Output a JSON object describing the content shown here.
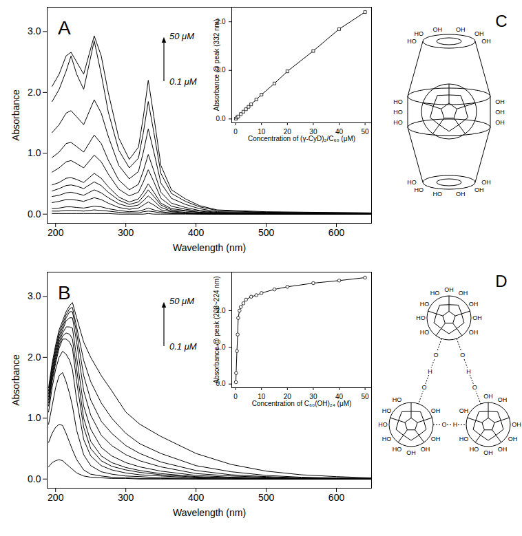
{
  "chart_data": [
    {
      "type": "line",
      "title": "A",
      "x_label": "Wavelength (nm)",
      "y_label": "Absorbance",
      "annotations": [
        "50 μM",
        "0.1 μM"
      ],
      "color": "#000000",
      "x": [
        195,
        205,
        215,
        222,
        230,
        240,
        255,
        265,
        275,
        290,
        305,
        318,
        325,
        332,
        340,
        350,
        365,
        385,
        405,
        430,
        500,
        650
      ],
      "series": [
        {
          "values": [
            2.1,
            2.3,
            2.6,
            2.66,
            2.5,
            2.3,
            2.93,
            2.6,
            2.0,
            1.25,
            0.9,
            1.1,
            1.6,
            2.2,
            1.6,
            0.8,
            0.4,
            0.25,
            0.14,
            0.07,
            0.04,
            0.02
          ]
        },
        {
          "values": [
            1.85,
            2.05,
            2.35,
            2.6,
            2.3,
            2.05,
            2.85,
            2.3,
            1.68,
            1.05,
            0.76,
            0.92,
            1.34,
            1.85,
            1.34,
            0.67,
            0.34,
            0.21,
            0.12,
            0.06,
            0.03,
            0.02
          ]
        },
        {
          "values": [
            1.34,
            1.47,
            1.66,
            1.7,
            1.6,
            1.47,
            1.88,
            1.66,
            1.28,
            0.8,
            0.58,
            0.7,
            1.02,
            1.4,
            1.02,
            0.51,
            0.26,
            0.16,
            0.09,
            0.04,
            0.03,
            0.01
          ]
        },
        {
          "values": [
            0.93,
            1.02,
            1.16,
            1.18,
            1.11,
            1.02,
            1.3,
            1.16,
            0.89,
            0.56,
            0.4,
            0.49,
            0.71,
            0.98,
            0.71,
            0.36,
            0.18,
            0.11,
            0.06,
            0.03,
            0.02,
            0.01
          ]
        },
        {
          "values": [
            0.69,
            0.76,
            0.86,
            0.88,
            0.83,
            0.76,
            0.97,
            0.86,
            0.66,
            0.41,
            0.3,
            0.36,
            0.53,
            0.73,
            0.53,
            0.26,
            0.13,
            0.08,
            0.05,
            0.02,
            0.01,
            0.01
          ]
        },
        {
          "values": [
            0.48,
            0.52,
            0.59,
            0.6,
            0.57,
            0.52,
            0.67,
            0.59,
            0.45,
            0.28,
            0.2,
            0.25,
            0.36,
            0.5,
            0.36,
            0.18,
            0.09,
            0.06,
            0.03,
            0.02,
            0.01,
            0.0
          ]
        },
        {
          "values": [
            0.38,
            0.42,
            0.47,
            0.48,
            0.46,
            0.42,
            0.53,
            0.47,
            0.36,
            0.23,
            0.16,
            0.2,
            0.29,
            0.4,
            0.29,
            0.15,
            0.07,
            0.05,
            0.03,
            0.01,
            0.01,
            0.0
          ]
        },
        {
          "values": [
            0.29,
            0.31,
            0.35,
            0.36,
            0.34,
            0.31,
            0.4,
            0.35,
            0.27,
            0.17,
            0.12,
            0.15,
            0.22,
            0.3,
            0.22,
            0.11,
            0.05,
            0.03,
            0.02,
            0.01,
            0.01,
            0.0
          ]
        },
        {
          "values": [
            0.19,
            0.21,
            0.24,
            0.24,
            0.23,
            0.21,
            0.27,
            0.24,
            0.18,
            0.11,
            0.08,
            0.1,
            0.15,
            0.2,
            0.15,
            0.07,
            0.04,
            0.02,
            0.01,
            0.01,
            0.0,
            0.0
          ]
        },
        {
          "values": [
            0.09,
            0.1,
            0.12,
            0.12,
            0.11,
            0.1,
            0.13,
            0.12,
            0.09,
            0.06,
            0.04,
            0.05,
            0.07,
            0.1,
            0.07,
            0.04,
            0.02,
            0.01,
            0.01,
            0.0,
            0.0,
            0.0
          ]
        },
        {
          "values": [
            0.05,
            0.05,
            0.06,
            0.06,
            0.06,
            0.05,
            0.07,
            0.06,
            0.05,
            0.03,
            0.02,
            0.02,
            0.04,
            0.05,
            0.04,
            0.02,
            0.01,
            0.01,
            0.0,
            0.0,
            0.0,
            0.0
          ]
        },
        {
          "values": [
            0.01,
            0.01,
            0.01,
            0.01,
            0.01,
            0.01,
            0.01,
            0.01,
            0.01,
            0.0,
            0.0,
            0.0,
            0.0,
            0.01,
            0.0,
            0.0,
            0.0,
            0.0,
            0.0,
            0.0,
            0.0,
            0.0
          ]
        }
      ],
      "xlim": [
        188,
        650
      ],
      "xticks": [
        200,
        300,
        400,
        500,
        600
      ],
      "ylim": [
        -0.15,
        3.4
      ],
      "yticks": [
        0,
        1,
        2,
        3
      ]
    },
    {
      "type": "line",
      "marker": "square",
      "color": "#000000",
      "x_label": "Concentration of (γ-CyD)₂/C₆₀ (μM)",
      "y_label": "Absorbance @ peak (332 nm)",
      "x": [
        0.1,
        0.5,
        1,
        2,
        3,
        4,
        5,
        6,
        8,
        10,
        15,
        20,
        30,
        40,
        50
      ],
      "values": [
        0.005,
        0.03,
        0.05,
        0.1,
        0.15,
        0.2,
        0.25,
        0.3,
        0.4,
        0.5,
        0.73,
        0.98,
        1.4,
        1.85,
        2.2
      ],
      "xlim": [
        -1.5,
        52.5
      ],
      "xticks": [
        0,
        10,
        20,
        30,
        40,
        50
      ],
      "ylim": [
        -0.08,
        2.3
      ],
      "yticks": [
        0,
        1,
        2
      ]
    },
    {
      "type": "line",
      "title": "B",
      "x_label": "Wavelength (nm)",
      "y_label": "Absorbance",
      "annotations": [
        "50 μM",
        "0.1 μM"
      ],
      "color": "#000000",
      "x": [
        190,
        195,
        200,
        205,
        210,
        215,
        220,
        224,
        230,
        240,
        250,
        265,
        280,
        300,
        320,
        350,
        400,
        450,
        500,
        550,
        600,
        650
      ],
      "series": [
        {
          "values": [
            1.5,
            1.9,
            2.2,
            2.45,
            2.6,
            2.75,
            2.85,
            2.9,
            2.65,
            2.25,
            2.0,
            1.7,
            1.45,
            1.1,
            0.9,
            0.7,
            0.42,
            0.24,
            0.13,
            0.07,
            0.04,
            0.02
          ]
        },
        {
          "values": [
            1.45,
            1.85,
            2.15,
            2.4,
            2.55,
            2.7,
            2.8,
            2.82,
            2.5,
            1.95,
            1.6,
            1.25,
            1.0,
            0.75,
            0.58,
            0.42,
            0.22,
            0.12,
            0.06,
            0.03,
            0.02,
            0.01
          ]
        },
        {
          "values": [
            1.4,
            1.8,
            2.1,
            2.35,
            2.5,
            2.65,
            2.75,
            2.75,
            2.4,
            1.7,
            1.3,
            0.95,
            0.75,
            0.55,
            0.42,
            0.28,
            0.14,
            0.07,
            0.04,
            0.02,
            0.01,
            0.01
          ]
        },
        {
          "values": [
            1.35,
            1.75,
            2.05,
            2.3,
            2.45,
            2.6,
            2.65,
            2.65,
            2.25,
            1.45,
            1.05,
            0.72,
            0.55,
            0.4,
            0.3,
            0.2,
            0.09,
            0.05,
            0.03,
            0.01,
            0.01,
            0.0
          ]
        },
        {
          "values": [
            1.3,
            1.7,
            2.0,
            2.25,
            2.4,
            2.5,
            2.5,
            2.48,
            2.0,
            1.2,
            0.82,
            0.52,
            0.38,
            0.27,
            0.2,
            0.13,
            0.06,
            0.03,
            0.02,
            0.01,
            0.0,
            0.0
          ]
        },
        {
          "values": [
            1.25,
            1.65,
            1.95,
            2.2,
            2.35,
            2.4,
            2.38,
            2.3,
            1.8,
            1.0,
            0.62,
            0.38,
            0.27,
            0.19,
            0.14,
            0.09,
            0.04,
            0.02,
            0.01,
            0.0,
            0.0,
            0.0
          ]
        },
        {
          "values": [
            1.2,
            1.6,
            1.9,
            2.15,
            2.3,
            2.3,
            2.25,
            2.15,
            1.6,
            0.85,
            0.5,
            0.3,
            0.21,
            0.15,
            0.11,
            0.07,
            0.03,
            0.02,
            0.01,
            0.0,
            0.0,
            0.0
          ]
        },
        {
          "values": [
            1.1,
            1.5,
            1.8,
            2.0,
            2.1,
            2.05,
            1.95,
            1.8,
            1.3,
            0.65,
            0.38,
            0.22,
            0.15,
            0.1,
            0.07,
            0.05,
            0.02,
            0.01,
            0.0,
            0.0,
            0.0,
            0.0
          ]
        },
        {
          "values": [
            0.9,
            1.2,
            1.5,
            1.7,
            1.75,
            1.6,
            1.4,
            1.2,
            0.8,
            0.4,
            0.22,
            0.12,
            0.08,
            0.05,
            0.04,
            0.02,
            0.01,
            0.0,
            0.0,
            0.0,
            0.0,
            0.0
          ]
        },
        {
          "values": [
            0.6,
            0.75,
            0.85,
            0.9,
            0.88,
            0.75,
            0.6,
            0.48,
            0.32,
            0.15,
            0.08,
            0.05,
            0.03,
            0.02,
            0.01,
            0.01,
            0.0,
            0.0,
            0.0,
            0.0,
            0.0,
            0.0
          ]
        },
        {
          "values": [
            0.2,
            0.27,
            0.3,
            0.32,
            0.3,
            0.25,
            0.2,
            0.16,
            0.1,
            0.05,
            0.03,
            0.02,
            0.01,
            0.01,
            0.0,
            0.0,
            0.0,
            0.0,
            0.0,
            0.0,
            0.0,
            0.0
          ]
        }
      ],
      "xlim": [
        188,
        650
      ],
      "xticks": [
        200,
        300,
        400,
        500,
        600
      ],
      "ylim": [
        -0.15,
        3.4
      ],
      "yticks": [
        0,
        1,
        2,
        3
      ]
    },
    {
      "type": "line",
      "marker": "circle",
      "color": "#000000",
      "x_label": "Concentration of C₆₀(OH)₂₄ (μM)",
      "y_label": "Absorbance @ peak (208~224 nm)",
      "x": [
        0.1,
        0.2,
        0.5,
        0.8,
        1,
        1.5,
        2,
        3,
        4,
        6,
        8,
        10,
        15,
        20,
        30,
        40,
        50
      ],
      "values": [
        0.05,
        0.3,
        0.9,
        1.35,
        1.8,
        2.0,
        2.1,
        2.2,
        2.3,
        2.38,
        2.42,
        2.48,
        2.58,
        2.65,
        2.75,
        2.82,
        2.9
      ],
      "xlim": [
        -1.5,
        52.5
      ],
      "xticks": [
        0,
        10,
        20,
        30,
        40,
        50
      ],
      "ylim": [
        -0.1,
        3.05
      ],
      "yticks": [
        0,
        1,
        2
      ]
    }
  ],
  "diagrams": {
    "C": {
      "label": "C",
      "top_rim": [
        "HO",
        "HO",
        "OH",
        "OH",
        "OH",
        "OH"
      ],
      "waist": [
        "HO",
        "HO",
        "HO",
        "OH",
        "OH",
        "OH"
      ],
      "bottom_rim": [
        "OH",
        "OH",
        "OH",
        "HO",
        "HO",
        "HO"
      ]
    },
    "D": {
      "label": "D",
      "molecules": [
        {
          "hydroxyls": [
            "OH",
            "OH",
            "HO",
            "HO",
            "HO",
            "HO",
            "OH",
            "OH",
            "OH"
          ]
        },
        {
          "hydroxyls": [
            "OH",
            "OH",
            "OH",
            "HO",
            "HO",
            "HO",
            "HO",
            "HO",
            "OH"
          ]
        },
        {
          "hydroxyls": [
            "OH",
            "OH",
            "OH",
            "OH",
            "HO",
            "HO",
            "OH",
            "OH",
            "OH"
          ]
        }
      ],
      "hydrogen_bonds": [
        {
          "from": 0,
          "to": 1,
          "atoms": [
            "O",
            "H",
            "O"
          ]
        },
        {
          "from": 0,
          "to": 2,
          "atoms": [
            "O",
            "H",
            "O"
          ]
        },
        {
          "from": 1,
          "to": 2,
          "atoms": [
            "O",
            "H"
          ]
        }
      ]
    }
  }
}
